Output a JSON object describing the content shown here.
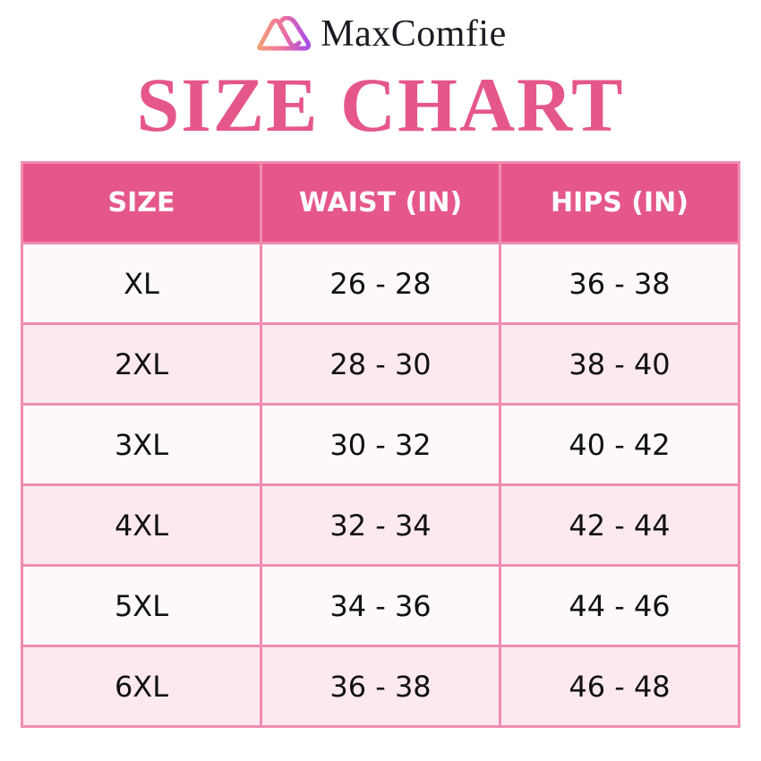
{
  "brand": {
    "name": "MaxComfie",
    "logo_icon": "mountain-loop-logo-icon"
  },
  "title": "SIZE CHART",
  "colors": {
    "accent": "#e5578a",
    "border": "#f08cb0",
    "row_alt": "#fce9f0"
  },
  "table": {
    "headers": [
      "SIZE",
      "WAIST (IN)",
      "HIPS (IN)"
    ],
    "rows": [
      [
        "XL",
        "26 - 28",
        "36 - 38"
      ],
      [
        "2XL",
        "28 - 30",
        "38 - 40"
      ],
      [
        "3XL",
        "30 - 32",
        "40 - 42"
      ],
      [
        "4XL",
        "32 - 34",
        "42 - 44"
      ],
      [
        "5XL",
        "34 - 36",
        "44 - 46"
      ],
      [
        "6XL",
        "36 - 38",
        "46 - 48"
      ]
    ]
  }
}
